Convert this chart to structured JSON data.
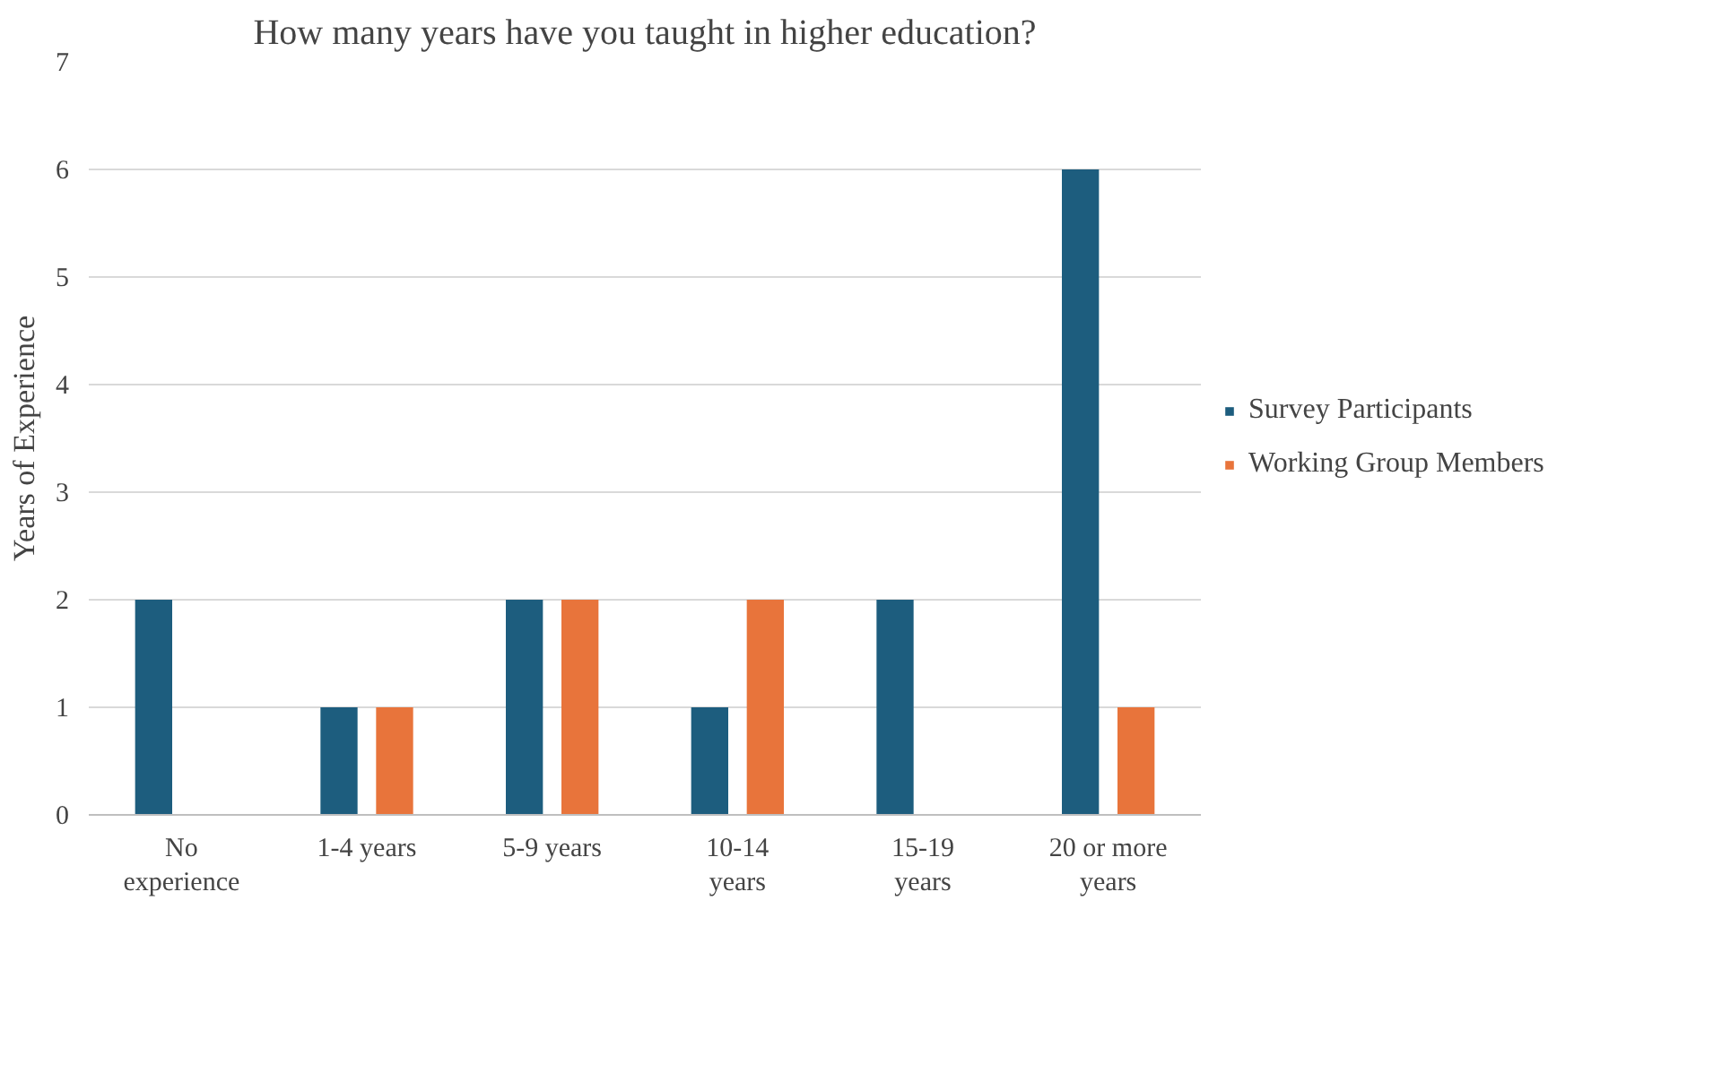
{
  "chart_data": {
    "type": "bar",
    "title": "How many years have you taught in higher education?",
    "ylabel": "Years of Experience",
    "categories": [
      "No experience",
      "1-4 years",
      "5-9 years",
      "10-14 years",
      "15-19 years",
      "20 or more years"
    ],
    "series": [
      {
        "name": "Survey Participants",
        "color": "#1d5d7e",
        "values": [
          2,
          1,
          2,
          1,
          2,
          6
        ]
      },
      {
        "name": "Working Group Members",
        "color": "#e8743b",
        "values": [
          null,
          1,
          2,
          2,
          null,
          1
        ]
      }
    ],
    "ylim": [
      0,
      7
    ],
    "yticks": [
      0,
      1,
      2,
      3,
      4,
      5,
      6,
      7
    ],
    "grid": "y",
    "legend": "right"
  }
}
